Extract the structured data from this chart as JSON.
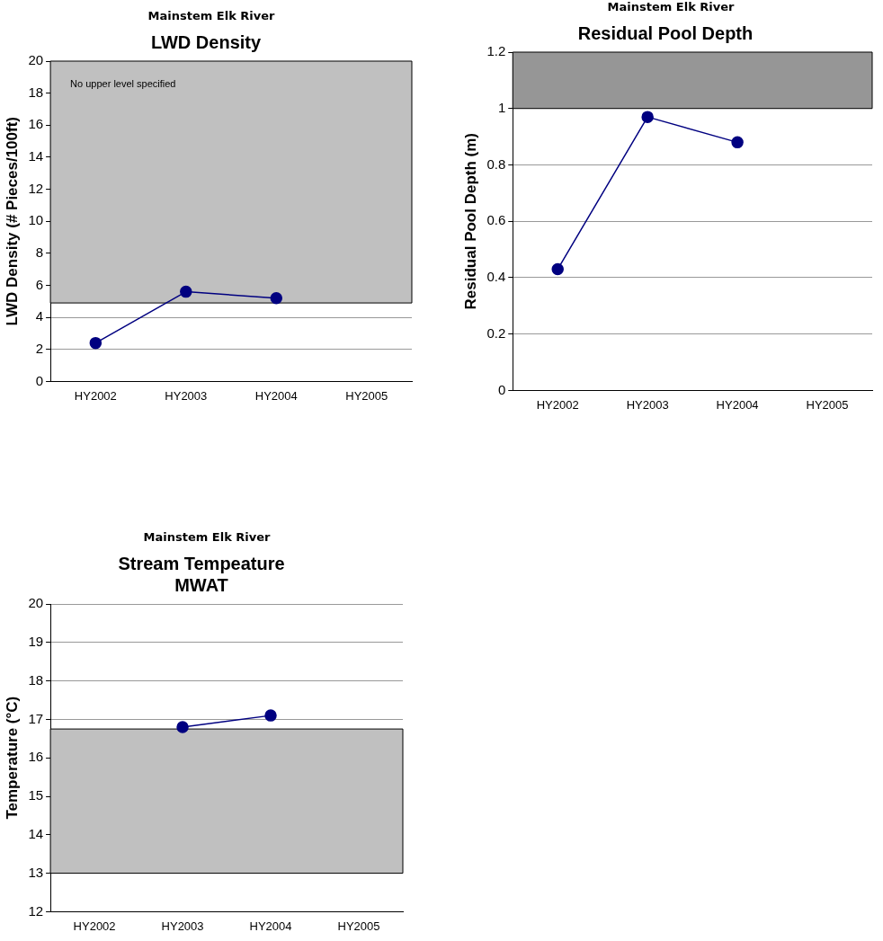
{
  "chart_data": [
    {
      "type": "line",
      "subtitle": "Mainstem Elk River",
      "title": "LWD Density",
      "ylabel": "LWD Density (# Pieces/100ft)",
      "categories": [
        "HY2002",
        "HY2003",
        "HY2004",
        "HY2005"
      ],
      "series": [
        {
          "color": "#000080",
          "values": [
            2.4,
            5.6,
            5.2,
            null
          ]
        }
      ],
      "ylim": [
        0,
        20
      ],
      "yticks": [
        0,
        2,
        4,
        6,
        8,
        10,
        12,
        14,
        16,
        18,
        20
      ],
      "grid": "y",
      "legend": false,
      "marker": "circle",
      "line_style": "solid",
      "bands": [
        {
          "axis": "y",
          "from": 4.9,
          "to": 20,
          "color": "#c0c0c0"
        }
      ],
      "annotations": [
        "No upper level specified"
      ]
    },
    {
      "type": "line",
      "subtitle": "Mainstem Elk River",
      "title": "Residual Pool Depth",
      "ylabel": "Residual Pool Depth (m)",
      "categories": [
        "HY2002",
        "HY2003",
        "HY2004",
        "HY2005"
      ],
      "series": [
        {
          "color": "#000080",
          "values": [
            0.43,
            0.97,
            0.88,
            null
          ]
        }
      ],
      "ylim": [
        0,
        1.2
      ],
      "yticks": [
        0,
        0.2,
        0.4,
        0.6,
        0.8,
        1,
        1.2
      ],
      "grid": "y",
      "legend": false,
      "marker": "circle",
      "line_style": "solid",
      "bands": [
        {
          "axis": "y",
          "from": 1,
          "to": 1.2,
          "color": "#969696"
        }
      ]
    },
    {
      "type": "line",
      "subtitle": "Mainstem Elk River",
      "title": "Stream Tempeature\nMWAT",
      "ylabel": "Temperature (°C)",
      "categories": [
        "HY2002",
        "HY2003",
        "HY2004",
        "HY2005"
      ],
      "series": [
        {
          "color": "#000080",
          "values": [
            null,
            16.8,
            17.1,
            null
          ]
        }
      ],
      "ylim": [
        12,
        20
      ],
      "yticks": [
        12,
        13,
        14,
        15,
        16,
        17,
        18,
        19,
        20
      ],
      "grid": "y",
      "legend": false,
      "marker": "circle",
      "line_style": "solid",
      "bands": [
        {
          "axis": "y",
          "from": 13,
          "to": 16.75,
          "color": "#c0c0c0"
        }
      ]
    }
  ]
}
